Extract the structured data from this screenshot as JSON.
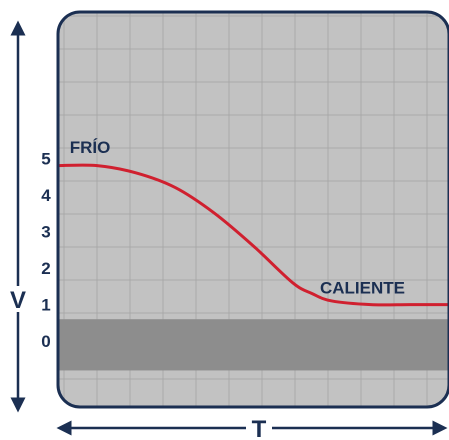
{
  "chart_data": {
    "type": "line",
    "title": "",
    "xlabel": "T",
    "ylabel": "V",
    "yticks": [
      "0",
      "1",
      "2",
      "3",
      "4",
      "5"
    ],
    "ylim": [
      -1.8,
      9.0
    ],
    "xlim": [
      0,
      10
    ],
    "grid": true,
    "series": [
      {
        "x": [
          0,
          1,
          2,
          3,
          4,
          5,
          6,
          6.5,
          7,
          8,
          9,
          10
        ],
        "y": [
          4.8,
          4.8,
          4.6,
          4.2,
          3.5,
          2.6,
          1.6,
          1.3,
          1.1,
          1.0,
          1.0,
          1.0
        ]
      }
    ],
    "annotations": [
      {
        "text": "FRÍO",
        "x": 0.3,
        "y": 5.15
      },
      {
        "text": "CALIENTE",
        "x": 6.7,
        "y": 1.3
      }
    ],
    "band": {
      "y_from": -0.8,
      "y_to": 0.6
    },
    "colors": {
      "plot_bg": "#c2c2c2",
      "grid": "#a9a9a9",
      "border": "#1b2f52",
      "curve": "#d0202f",
      "band": "#8d8d8d",
      "text": "#1b2f52"
    }
  }
}
